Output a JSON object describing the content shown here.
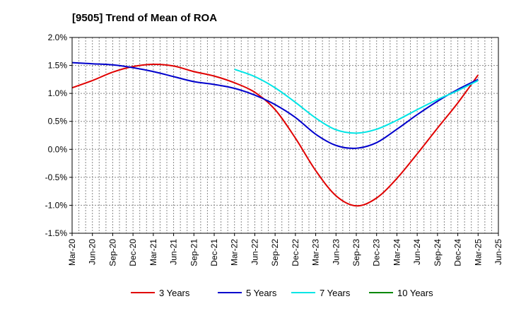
{
  "chart_data": {
    "type": "line",
    "title": "[9505]  Trend of Mean of ROA",
    "xlabel": "",
    "ylabel": "",
    "ylim": [
      -1.5,
      2.0
    ],
    "y_ticks": [
      "2.0%",
      "1.5%",
      "1.0%",
      "0.5%",
      "0.0%",
      "-0.5%",
      "-1.0%",
      "-1.5%"
    ],
    "y_tick_values": [
      2.0,
      1.5,
      1.0,
      0.5,
      0.0,
      -0.5,
      -1.0,
      -1.5
    ],
    "categories": [
      "Mar-20",
      "Jun-20",
      "Sep-20",
      "Dec-20",
      "Mar-21",
      "Jun-21",
      "Sep-21",
      "Dec-21",
      "Mar-22",
      "Jun-22",
      "Sep-22",
      "Dec-22",
      "Mar-23",
      "Jun-23",
      "Sep-23",
      "Dec-23",
      "Mar-24",
      "Jun-24",
      "Sep-24",
      "Dec-24",
      "Mar-25",
      "Jun-25"
    ],
    "grid": true,
    "legend_position": "bottom",
    "series": [
      {
        "name": "3 Years",
        "color": "#e00000",
        "values": [
          1.1,
          1.23,
          1.38,
          1.48,
          1.52,
          1.49,
          1.39,
          1.31,
          1.19,
          1.02,
          0.71,
          0.2,
          -0.38,
          -0.83,
          -1.01,
          -0.87,
          -0.52,
          -0.08,
          0.38,
          0.83,
          1.33,
          null
        ]
      },
      {
        "name": "5 Years",
        "color": "#0000cc",
        "values": [
          1.55,
          1.53,
          1.51,
          1.46,
          1.39,
          1.3,
          1.21,
          1.16,
          1.09,
          0.97,
          0.8,
          0.57,
          0.27,
          0.07,
          0.02,
          0.12,
          0.36,
          0.62,
          0.86,
          1.07,
          1.25,
          null
        ]
      },
      {
        "name": "7 Years",
        "color": "#00e5e5",
        "values": [
          null,
          null,
          null,
          null,
          null,
          null,
          null,
          null,
          1.43,
          1.3,
          1.1,
          0.84,
          0.56,
          0.35,
          0.29,
          0.36,
          0.52,
          0.71,
          0.89,
          1.05,
          1.23,
          null
        ]
      },
      {
        "name": "10 Years",
        "color": "#008800",
        "values": [
          null,
          null,
          null,
          null,
          null,
          null,
          null,
          null,
          null,
          null,
          null,
          null,
          null,
          null,
          null,
          null,
          null,
          null,
          null,
          null,
          null,
          null
        ]
      }
    ]
  }
}
